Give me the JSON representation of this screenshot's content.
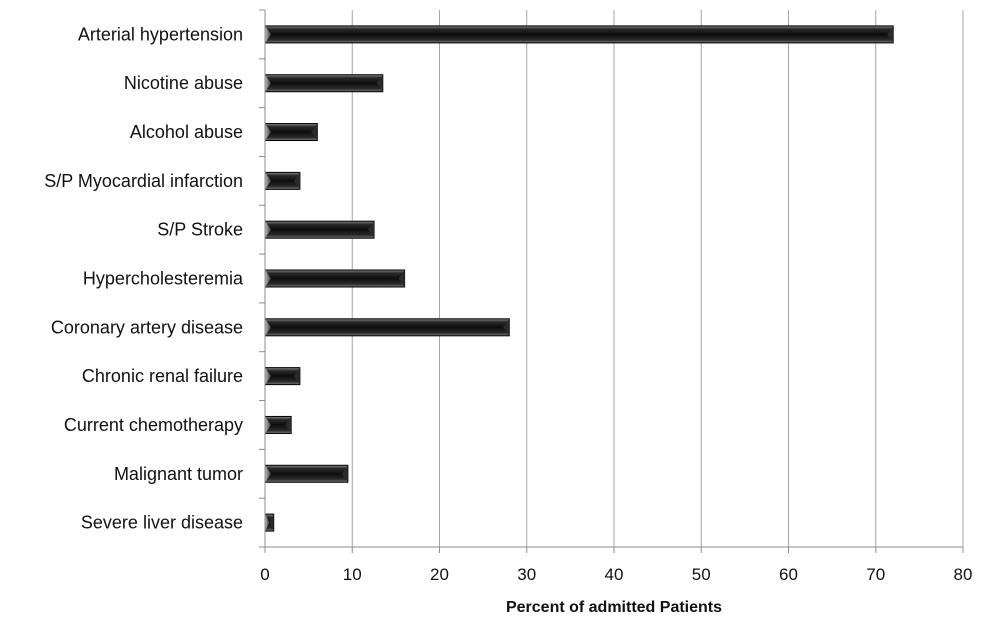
{
  "chart_data": {
    "type": "bar",
    "orientation": "horizontal",
    "title": "",
    "xlabel": "Percent of admitted Patients",
    "ylabel": "",
    "xlim": [
      0,
      80
    ],
    "xticks": [
      "0",
      "10",
      "20",
      "30",
      "40",
      "50",
      "60",
      "70",
      "80"
    ],
    "grid": true,
    "legend": "none",
    "bar_color": "#1a1a1a",
    "categories": [
      "Arterial hypertension",
      "Nicotine abuse",
      "Alcohol abuse",
      "S/P Myocardial infarction",
      "S/P Stroke",
      "Hypercholesteremia",
      "Coronary artery disease",
      "Chronic renal failure",
      "Current chemotherapy",
      "Malignant tumor",
      "Severe liver disease"
    ],
    "values": [
      72,
      13.5,
      6,
      4,
      12.5,
      16,
      28,
      4,
      3,
      9.5,
      1
    ]
  }
}
